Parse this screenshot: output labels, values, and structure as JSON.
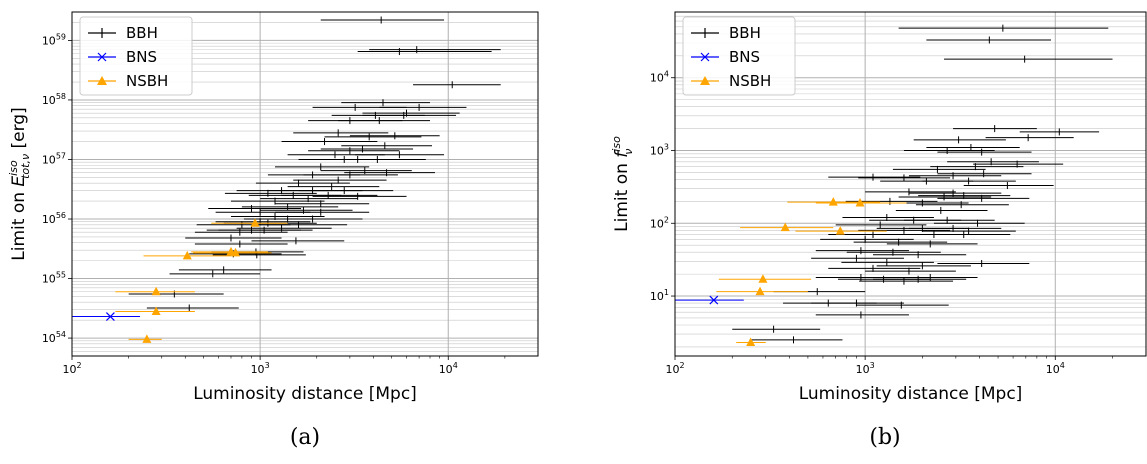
{
  "figure": {
    "captions": [
      "(a)",
      "(b)"
    ]
  },
  "colors": {
    "BBH": "#000000",
    "BNS": "#0000ff",
    "NSBH": "#ffa500",
    "grid": "#b0b0b0"
  },
  "chart_data": [
    {
      "type": "scatter",
      "panel": "(a)",
      "xlabel": "Luminosity distance [Mpc]",
      "ylabel": "Limit on E^iso_tot,ν [erg]",
      "xscale": "log",
      "yscale": "log",
      "xlim": [
        100,
        30000
      ],
      "ylim": [
        5e+53,
        3e+59
      ],
      "xticks": [
        100,
        1000,
        10000
      ],
      "xtick_labels": [
        "10^2",
        "10^3",
        "10^4"
      ],
      "yticks": [
        1e+54,
        1e+55,
        1e+56,
        1e+57,
        1e+58,
        1e+59
      ],
      "ytick_labels": [
        "10^54",
        "10^55",
        "10^56",
        "10^57",
        "10^58",
        "10^59"
      ],
      "grid": true,
      "legend_position": "top-left",
      "series": [
        {
          "name": "BBH",
          "marker": "+",
          "points": [
            [
              4400,
              2.2e+59,
              2100,
              9500
            ],
            [
              6800,
              7e+58,
              3800,
              19000
            ],
            [
              5500,
              6.5e+58,
              3300,
              17000
            ],
            [
              10500,
              1.8e+58,
              6500,
              19000
            ],
            [
              7000,
              7.5e+57,
              4300,
              12500
            ],
            [
              4500,
              9e+57,
              2700,
              8000
            ],
            [
              3200,
              7.5e+57,
              1900,
              6000
            ],
            [
              5800,
              5.5e+57,
              3500,
              11000
            ],
            [
              6000,
              6e+57,
              3500,
              11500
            ],
            [
              4100,
              5.5e+57,
              2400,
              7500
            ],
            [
              3000,
              4.5e+57,
              1800,
              5700
            ],
            [
              4300,
              4.5e+57,
              2600,
              8000
            ],
            [
              2600,
              2.8e+57,
              1500,
              4800
            ],
            [
              5200,
              2.5e+57,
              3000,
              9000
            ],
            [
              3800,
              2.4e+57,
              2200,
              7200
            ],
            [
              2200,
              2e+57,
              1300,
              4200
            ],
            [
              4600,
              1.7e+57,
              2700,
              8200
            ],
            [
              3000,
              1.4e+57,
              1800,
              5500
            ],
            [
              3500,
              1.5e+57,
              2100,
              6500
            ],
            [
              5500,
              1.2e+57,
              3200,
              9500
            ],
            [
              2500,
              1.2e+57,
              1400,
              4600
            ],
            [
              4200,
              1e+57,
              2400,
              7600
            ],
            [
              2800,
              1e+57,
              1600,
              5100
            ],
            [
              3300,
              1e+57,
              1900,
              6000
            ],
            [
              2100,
              7.5e+56,
              1200,
              3800
            ],
            [
              3600,
              6.5e+56,
              2100,
              6400
            ],
            [
              4700,
              6e+56,
              2800,
              8500
            ],
            [
              3000,
              5.5e+56,
              1700,
              5400
            ],
            [
              1900,
              5.5e+56,
              1100,
              3400
            ],
            [
              2600,
              4.5e+56,
              1500,
              4700
            ],
            [
              1600,
              4e+56,
              950,
              3000
            ],
            [
              2400,
              3.5e+56,
              1400,
              4300
            ],
            [
              1300,
              3e+56,
              750,
              2300
            ],
            [
              1900,
              3e+56,
              1100,
              3500
            ],
            [
              2800,
              3e+56,
              1600,
              5100
            ],
            [
              1100,
              2.7e+56,
              650,
              2000
            ],
            [
              1500,
              2.5e+56,
              870,
              2700
            ],
            [
              2300,
              2.5e+56,
              1300,
              4200
            ],
            [
              1800,
              2.2e+56,
              1000,
              3300
            ],
            [
              3300,
              2.4e+56,
              1900,
              6000
            ],
            [
              1200,
              2e+56,
              700,
              2200
            ],
            [
              2100,
              1.8e+56,
              1200,
              3800
            ],
            [
              900,
              1.5e+56,
              530,
              1650
            ],
            [
              1400,
              1.6e+56,
              800,
              2600
            ],
            [
              1000,
              1.3e+56,
              580,
              1850
            ],
            [
              1700,
              1.4e+56,
              1000,
              3100
            ],
            [
              2100,
              1.3e+56,
              1200,
              3800
            ],
            [
              1200,
              1.1e+56,
              700,
              2200
            ],
            [
              1900,
              1e+56,
              1100,
              3500
            ],
            [
              1400,
              1e+56,
              820,
              2600
            ],
            [
              1000,
              9e+55,
              580,
              1850
            ],
            [
              800,
              8e+55,
              460,
              1450
            ],
            [
              1100,
              8.5e+55,
              640,
              2000
            ],
            [
              1600,
              8e+55,
              920,
              2900
            ],
            [
              1300,
              7e+55,
              750,
              2400
            ],
            [
              900,
              6.5e+55,
              520,
              1650
            ],
            [
              780,
              6e+55,
              450,
              1400
            ],
            [
              1050,
              6.5e+55,
              600,
              1900
            ],
            [
              700,
              4.8e+55,
              400,
              1300
            ],
            [
              1550,
              4.3e+55,
              900,
              2800
            ],
            [
              780,
              3.8e+55,
              450,
              1400
            ],
            [
              950,
              2.8e+55,
              550,
              1700
            ],
            [
              720,
              2.6e+55,
              420,
              1300
            ],
            [
              960,
              2.5e+55,
              560,
              1750
            ],
            [
              560,
              1.2e+55,
              330,
              1000
            ],
            [
              640,
              1.4e+55,
              370,
              1150
            ],
            [
              350,
              5.5e+54,
              200,
              640
            ],
            [
              420,
              3.2e+54,
              250,
              770
            ]
          ]
        },
        {
          "name": "BNS",
          "marker": "x",
          "points": [
            [
              160,
              2.3e+54,
              100,
              230
            ]
          ]
        },
        {
          "name": "NSBH",
          "marker": "^",
          "points": [
            [
              940,
              8.5e+55,
              550,
              1400
            ],
            [
              700,
              2.8e+55,
              430,
              1100
            ],
            [
              740,
              2.7e+55,
              440,
              1150
            ],
            [
              410,
              2.4e+55,
              240,
              700
            ],
            [
              280,
              6e+54,
              170,
              450
            ],
            [
              280,
              2.8e+54,
              170,
              450
            ],
            [
              250,
              9.5e+53,
              200,
              300
            ]
          ]
        }
      ]
    },
    {
      "type": "scatter",
      "panel": "(b)",
      "xlabel": "Luminosity distance [Mpc]",
      "ylabel": "Limit on f^iso_ν",
      "xscale": "log",
      "yscale": "log",
      "xlim": [
        100,
        30000
      ],
      "ylim": [
        1.5,
        80000
      ],
      "xticks": [
        100,
        1000,
        10000
      ],
      "xtick_labels": [
        "10^2",
        "10^3",
        "10^4"
      ],
      "yticks": [
        10,
        100,
        1000,
        10000
      ],
      "ytick_labels": [
        "10^1",
        "10^2",
        "10^3",
        "10^4"
      ],
      "grid": true,
      "legend_position": "top-left",
      "series": [
        {
          "name": "BBH",
          "marker": "+",
          "points": [
            [
              5300,
              48000,
              1500,
              19000
            ],
            [
              4500,
              33000,
              2100,
              9500
            ],
            [
              6900,
              18000,
              2600,
              20000
            ],
            [
              4800,
              2000,
              2900,
              8000
            ],
            [
              10500,
              1800,
              6500,
              17000
            ],
            [
              7200,
              1500,
              4300,
              12500
            ],
            [
              3100,
              1400,
              1800,
              5500
            ],
            [
              4100,
              950,
              2400,
              7500
            ],
            [
              3600,
              1100,
              2100,
              6500
            ],
            [
              2700,
              1000,
              1600,
              4800
            ],
            [
              6300,
              650,
              3700,
              11000
            ],
            [
              4600,
              700,
              2700,
              8200
            ],
            [
              3800,
              600,
              2200,
              6800
            ],
            [
              2400,
              550,
              1400,
              4300
            ],
            [
              2900,
              450,
              1700,
              5200
            ],
            [
              1100,
              430,
              640,
              1950
            ],
            [
              1600,
              420,
              920,
              2800
            ],
            [
              4200,
              480,
              2400,
              7500
            ],
            [
              3500,
              380,
              2000,
              6200
            ],
            [
              2100,
              380,
              1200,
              3700
            ],
            [
              5600,
              330,
              3300,
              9800
            ],
            [
              2900,
              260,
              1700,
              5200
            ],
            [
              1700,
              270,
              1000,
              3000
            ],
            [
              3300,
              240,
              1900,
              5800
            ],
            [
              2600,
              230,
              1500,
              4600
            ],
            [
              4100,
              220,
              2400,
              7300
            ],
            [
              1350,
              200,
              790,
              2400
            ],
            [
              2000,
              190,
              1150,
              3500
            ],
            [
              3200,
              180,
              1850,
              5700
            ],
            [
              2500,
              150,
              1450,
              4400
            ],
            [
              1300,
              120,
              760,
              2300
            ],
            [
              1800,
              110,
              1050,
              3200
            ],
            [
              2700,
              110,
              1600,
              4800
            ],
            [
              3900,
              100,
              2300,
              6900
            ],
            [
              1200,
              95,
              700,
              2100
            ],
            [
              2000,
              85,
              1150,
              3500
            ],
            [
              2900,
              85,
              1700,
              5200
            ],
            [
              1600,
              80,
              920,
              2800
            ],
            [
              3500,
              78,
              2000,
              6200
            ],
            [
              1100,
              70,
              640,
              1950
            ],
            [
              2300,
              70,
              1350,
              4100
            ],
            [
              3300,
              70,
              1900,
              5800
            ],
            [
              1000,
              60,
              580,
              1800
            ],
            [
              1500,
              55,
              870,
              2700
            ],
            [
              2200,
              52,
              1300,
              3900
            ],
            [
              950,
              42,
              550,
              1700
            ],
            [
              1400,
              40,
              800,
              2500
            ],
            [
              1900,
              37,
              1100,
              3400
            ],
            [
              900,
              33,
              520,
              1600
            ],
            [
              1300,
              29,
              750,
              2300
            ],
            [
              2000,
              26,
              1150,
              3600
            ],
            [
              4100,
              28,
              2400,
              7300
            ],
            [
              1100,
              24,
              640,
              1950
            ],
            [
              1700,
              22,
              1000,
              3000
            ],
            [
              950,
              18,
              550,
              1700
            ],
            [
              1250,
              17,
              720,
              2200
            ],
            [
              1600,
              16,
              930,
              2900
            ],
            [
              1900,
              17,
              1100,
              3400
            ],
            [
              2200,
              18,
              1300,
              3900
            ],
            [
              900,
              8,
              520,
              1600
            ],
            [
              1550,
              7.5,
              900,
              2750
            ],
            [
              560,
              11.5,
              330,
              1000
            ],
            [
              640,
              8,
              370,
              1150
            ],
            [
              950,
              5.5,
              550,
              1700
            ],
            [
              330,
              3.5,
              200,
              580
            ],
            [
              420,
              2.5,
              250,
              760
            ]
          ]
        },
        {
          "name": "BNS",
          "marker": "x",
          "points": [
            [
              160,
              8.8,
              100,
              230
            ]
          ]
        },
        {
          "name": "NSBH",
          "marker": "^",
          "points": [
            [
              680,
              195,
              390,
              1200
            ],
            [
              940,
              190,
              550,
              1650
            ],
            [
              380,
              87,
              220,
              680
            ],
            [
              740,
              78,
              430,
              1300
            ],
            [
              290,
              17,
              170,
              520
            ],
            [
              280,
              11.5,
              165,
              500
            ],
            [
              250,
              2.3,
              210,
              300
            ]
          ]
        }
      ]
    }
  ]
}
